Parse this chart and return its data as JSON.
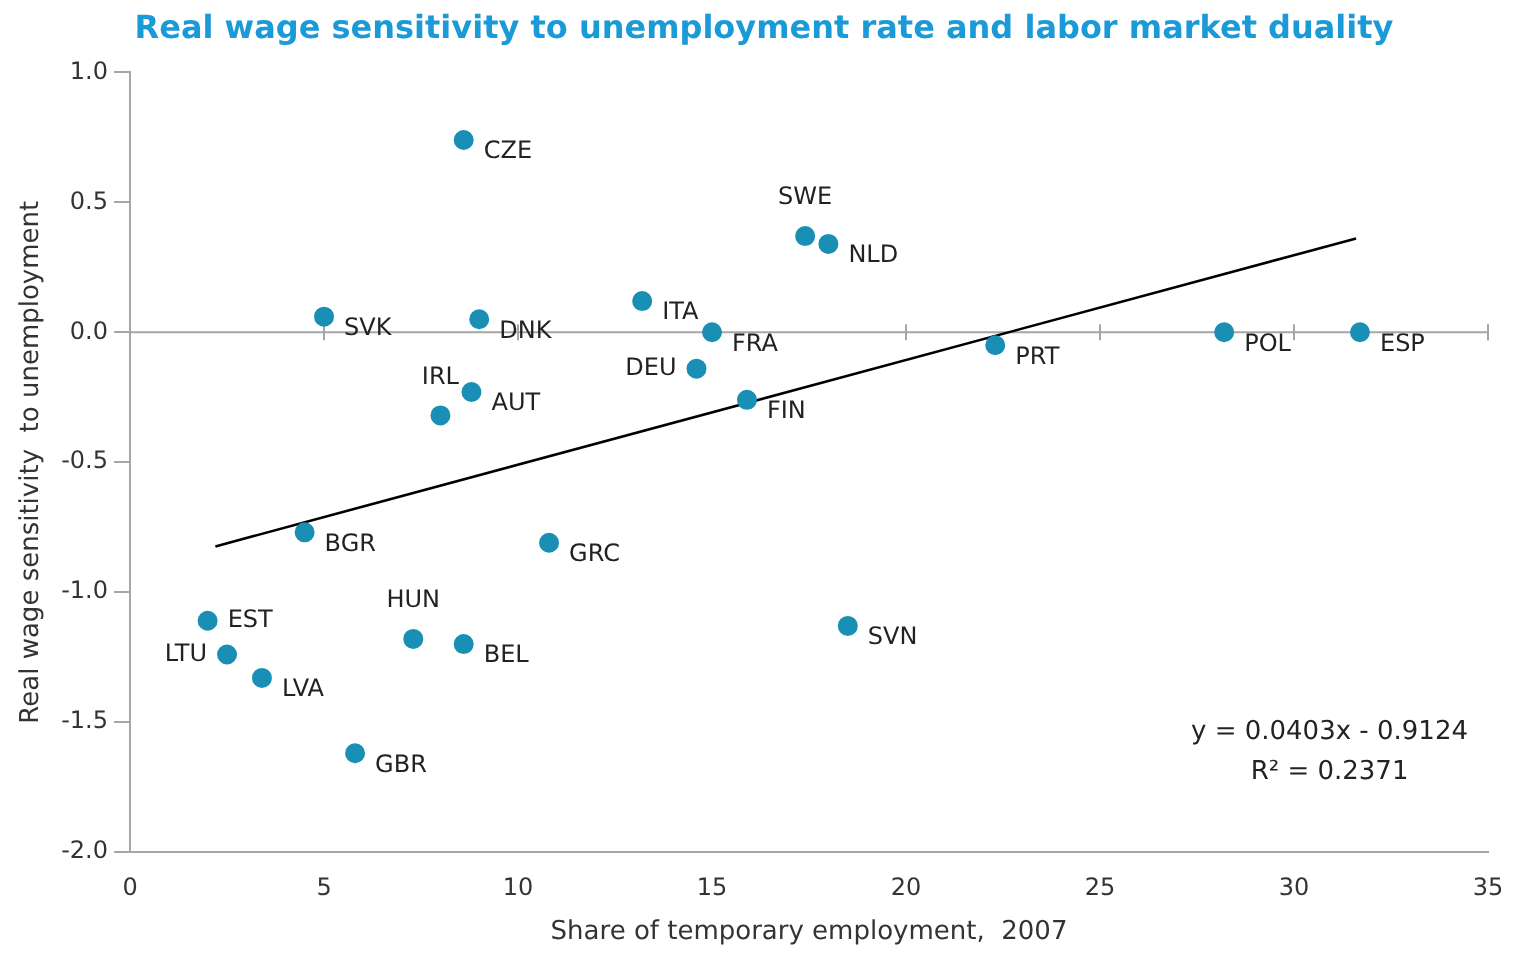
{
  "chart_data": {
    "type": "scatter",
    "title": "Real wage sensitivity to unemployment rate and labor market duality",
    "xlabel": "Share of temporary employment,  2007",
    "ylabel": "Real wage sensitivity  to unemployment",
    "xlim": [
      0,
      35
    ],
    "xticks": [
      0,
      5,
      10,
      15,
      20,
      25,
      30,
      35
    ],
    "ylim": [
      -2,
      1
    ],
    "yticks": [
      {
        "value": -2,
        "label": "-2.0"
      },
      {
        "value": -1.5,
        "label": "-1.5"
      },
      {
        "value": -1,
        "label": "-1.0"
      },
      {
        "value": -0.5,
        "label": "-0.5"
      },
      {
        "value": 0,
        "label": "0.0"
      },
      {
        "value": 0.5,
        "label": "0.5"
      },
      {
        "value": 1,
        "label": "1.0"
      }
    ],
    "grid": false,
    "legend": false,
    "ref_lines": [
      {
        "axis": "y",
        "value": 0,
        "color": "#a6a6a6"
      }
    ],
    "series": [
      {
        "type": "scatter",
        "marker": "circle",
        "color": "#1a8fb5",
        "x": [
          8.6,
          17.4,
          18.0,
          5.0,
          9.0,
          13.2,
          15.0,
          14.6,
          15.9,
          8.8,
          8.0,
          22.3,
          28.2,
          31.7,
          4.5,
          10.8,
          2.0,
          2.5,
          3.4,
          7.3,
          8.6,
          18.5,
          5.8
        ],
        "values": [
          0.74,
          0.37,
          0.34,
          0.06,
          0.05,
          0.12,
          0.0,
          -0.14,
          -0.26,
          -0.23,
          -0.32,
          -0.05,
          0.0,
          0.0,
          -0.77,
          -0.81,
          -1.11,
          -1.24,
          -1.33,
          -1.18,
          -1.2,
          -1.13,
          -1.62
        ]
      },
      {
        "type": "line",
        "color": "#000000",
        "x": [
          2.2,
          31.6
        ],
        "values": [
          -0.824,
          0.361
        ]
      }
    ],
    "annotations": [
      {
        "text": "CZE",
        "x": 8.6,
        "y": 0.74
      },
      {
        "text": "SWE",
        "x": 17.4,
        "y": 0.37
      },
      {
        "text": "NLD",
        "x": 18.0,
        "y": 0.34
      },
      {
        "text": "SVK",
        "x": 5.0,
        "y": 0.06
      },
      {
        "text": "DNK",
        "x": 9.0,
        "y": 0.05
      },
      {
        "text": "ITA",
        "x": 13.2,
        "y": 0.12
      },
      {
        "text": "FRA",
        "x": 15.0,
        "y": 0.0
      },
      {
        "text": "DEU",
        "x": 14.6,
        "y": -0.14
      },
      {
        "text": "FIN",
        "x": 15.9,
        "y": -0.26
      },
      {
        "text": "AUT",
        "x": 8.8,
        "y": -0.23
      },
      {
        "text": "IRL",
        "x": 8.0,
        "y": -0.32
      },
      {
        "text": "PRT",
        "x": 22.3,
        "y": -0.05
      },
      {
        "text": "POL",
        "x": 28.2,
        "y": 0.0
      },
      {
        "text": "ESP",
        "x": 31.7,
        "y": 0.0
      },
      {
        "text": "BGR",
        "x": 4.5,
        "y": -0.77
      },
      {
        "text": "GRC",
        "x": 10.8,
        "y": -0.81
      },
      {
        "text": "EST",
        "x": 2.0,
        "y": -1.11
      },
      {
        "text": "LTU",
        "x": 2.5,
        "y": -1.24
      },
      {
        "text": "LVA",
        "x": 3.4,
        "y": -1.33
      },
      {
        "text": "HUN",
        "x": 7.3,
        "y": -1.18
      },
      {
        "text": "BEL",
        "x": 8.6,
        "y": -1.2
      },
      {
        "text": "SVN",
        "x": 18.5,
        "y": -1.13
      },
      {
        "text": "GBR",
        "x": 5.8,
        "y": -1.62
      },
      "y = 0.0403x - 0.9124",
      "R² = 0.2371"
    ]
  }
}
